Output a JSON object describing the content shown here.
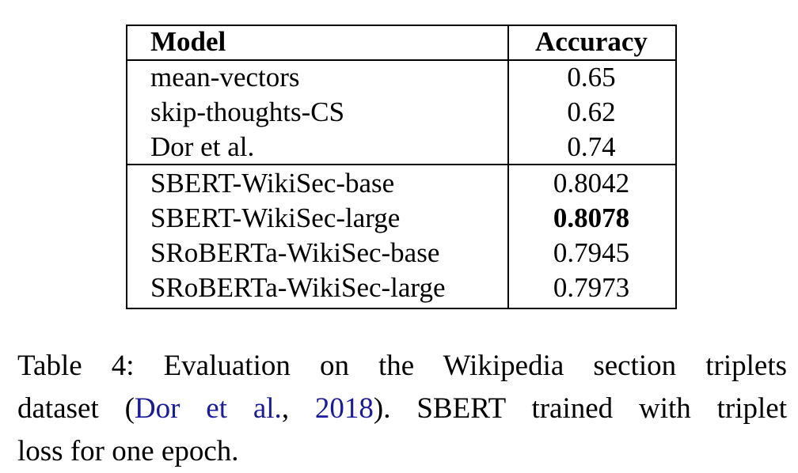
{
  "table": {
    "headers": {
      "model": "Model",
      "accuracy": "Accuracy"
    },
    "group1": [
      {
        "model": "mean-vectors",
        "accuracy": "0.65"
      },
      {
        "model": "skip-thoughts-CS",
        "accuracy": "0.62"
      },
      {
        "model": "Dor et al.",
        "accuracy": "0.74"
      }
    ],
    "group2": [
      {
        "model": "SBERT-WikiSec-base",
        "accuracy": "0.8042"
      },
      {
        "model": "SBERT-WikiSec-large",
        "accuracy": "0.8078"
      },
      {
        "model": "SRoBERTa-WikiSec-base",
        "accuracy": "0.7945"
      },
      {
        "model": "SRoBERTa-WikiSec-large",
        "accuracy": "0.7973"
      }
    ]
  },
  "caption": {
    "line1": "Table 4:  Evaluation on the Wikipedia section triplets",
    "line2_pre": "dataset (",
    "cite_author": "Dor et al.",
    "cite_sep": ", ",
    "cite_year": "2018",
    "line2_post": ").  SBERT trained with triplet",
    "line3": "loss for one epoch."
  },
  "colors": {
    "citation": "#1a1aa0"
  }
}
